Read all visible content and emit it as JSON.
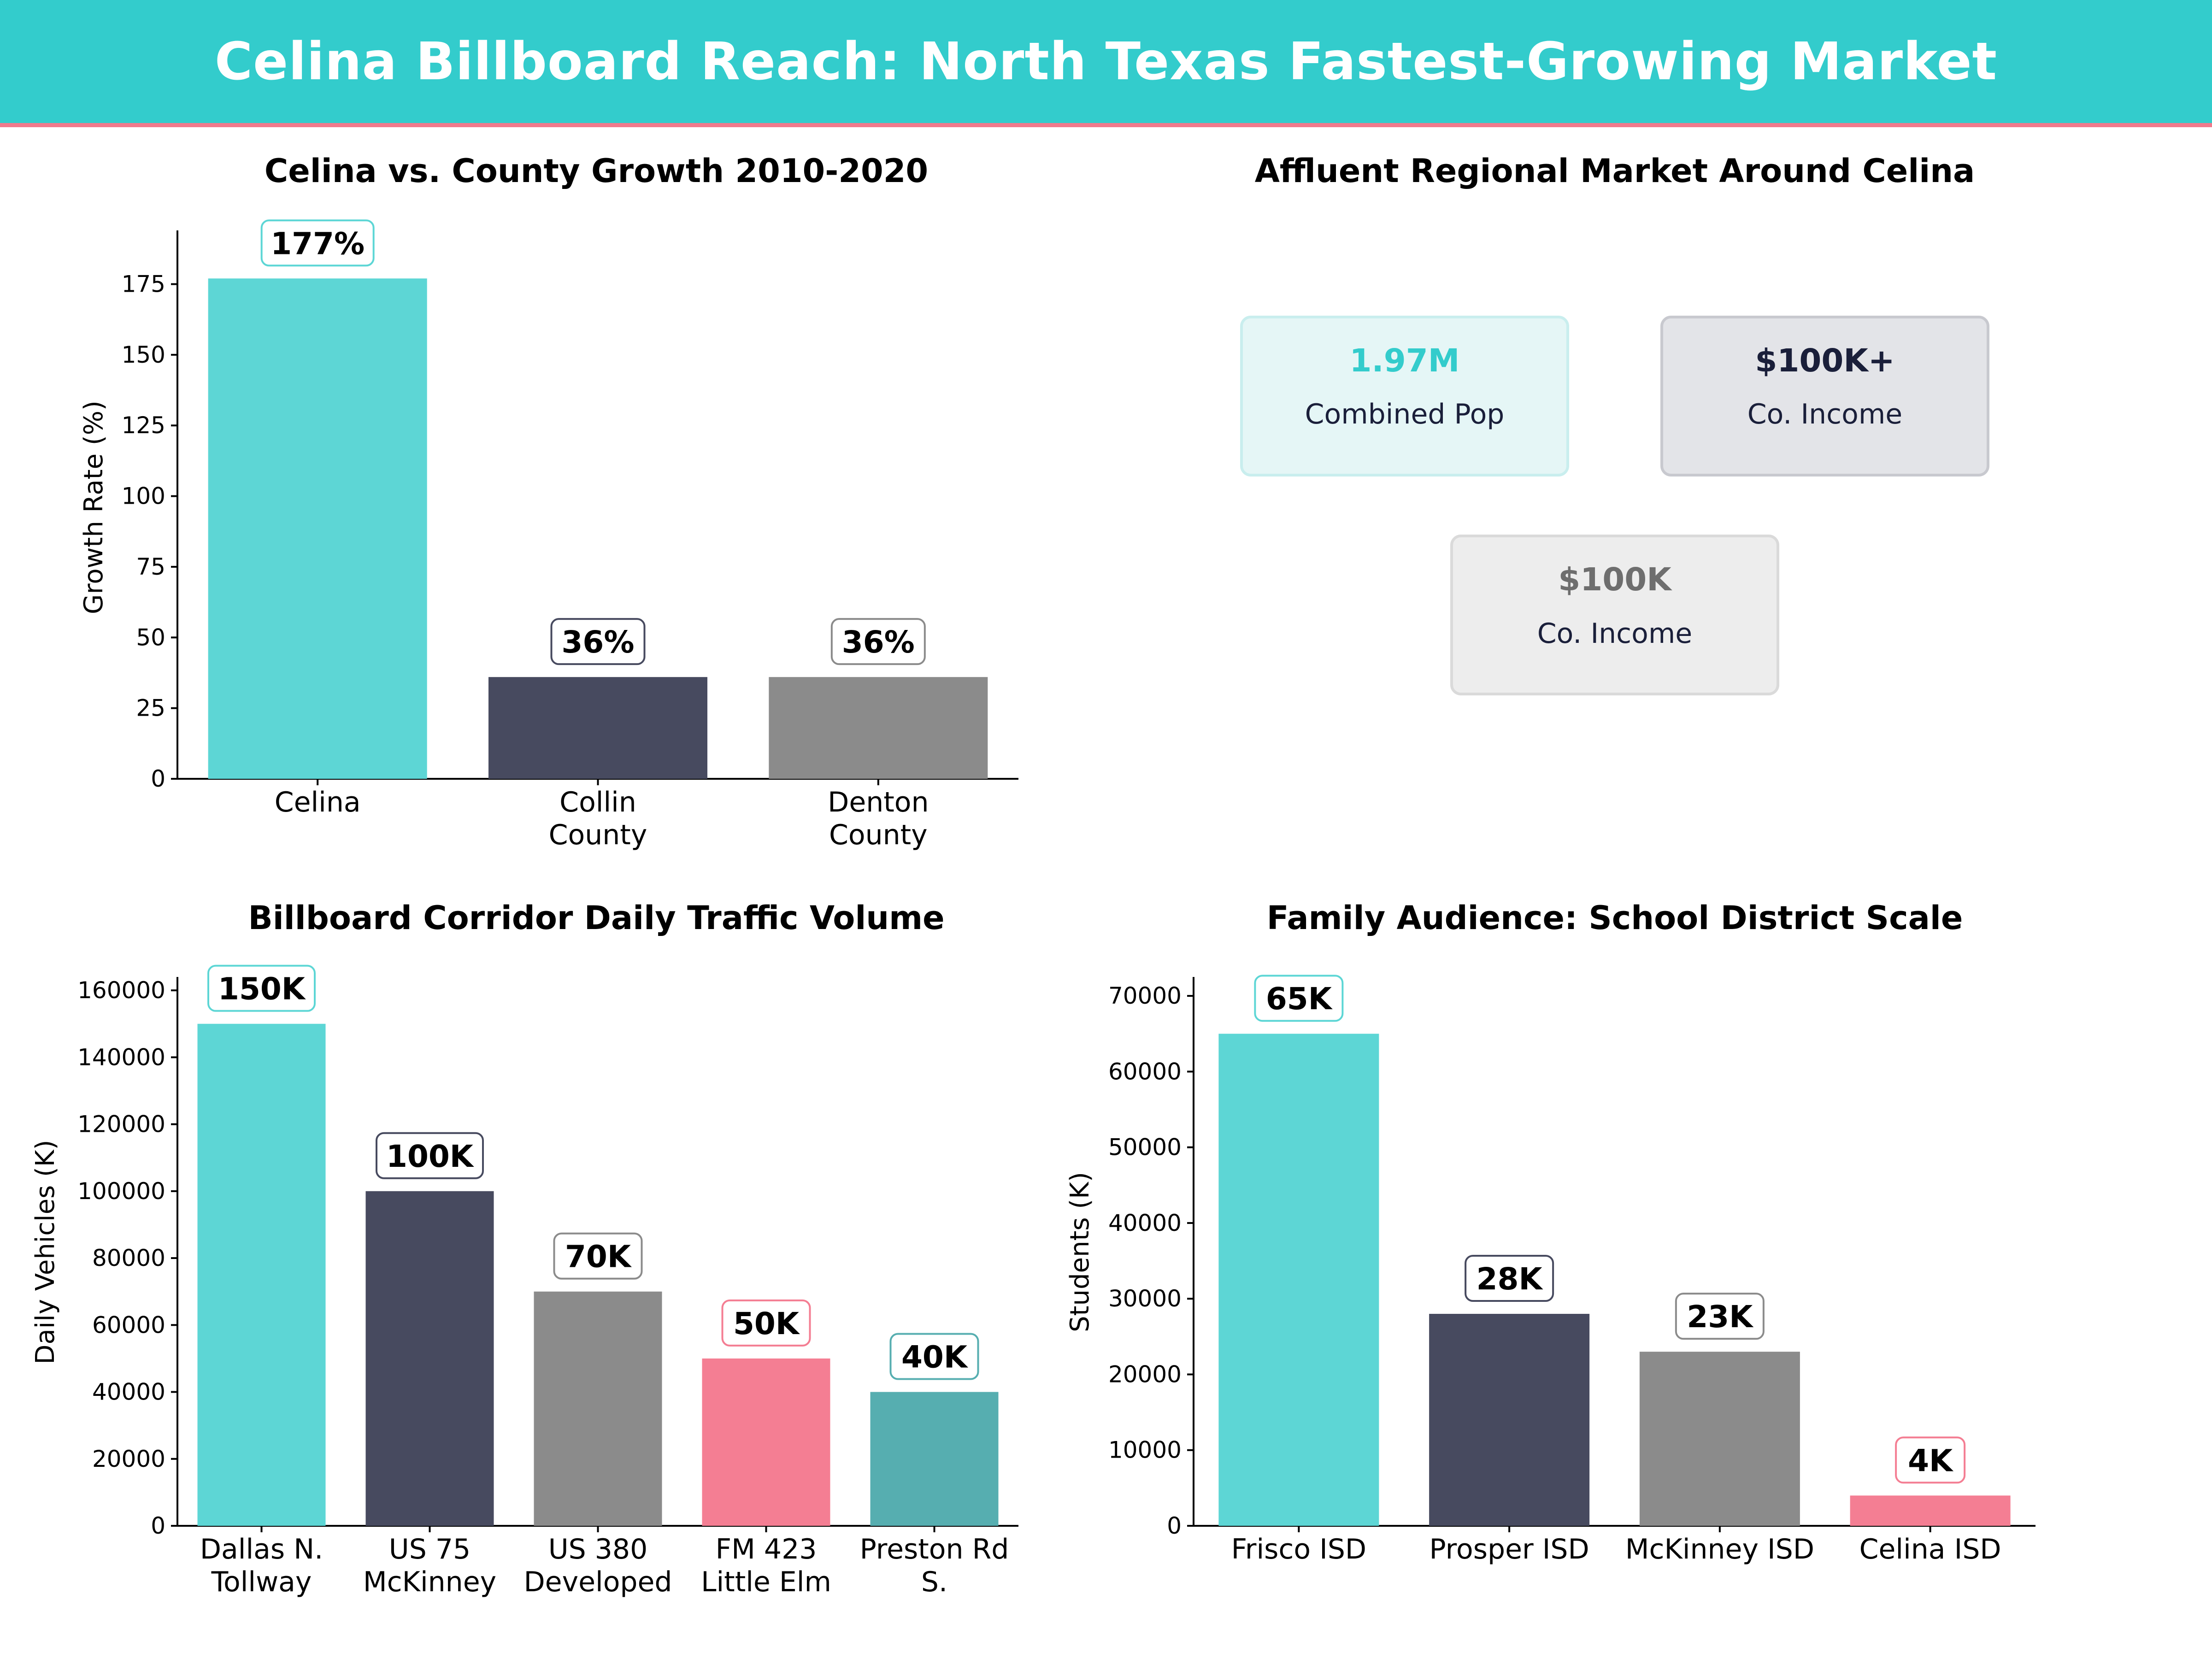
{
  "banner": {
    "title": "Celina Billboard Reach: North Texas Fastest-Growing Market"
  },
  "colors": {
    "teal": "#5dd6d5",
    "navy": "#474a5f",
    "gray": "#8b8b8b",
    "pink": "#f47e93",
    "darkteal": "#56aeb0",
    "banner": "#33cccc"
  },
  "chart_data": [
    {
      "type": "bar",
      "title": "Celina vs. County Growth 2010-2020",
      "ylabel": "Growth Rate (%)",
      "categories": [
        "Celina",
        "Collin\nCounty",
        "Denton\nCounty"
      ],
      "values": [
        177,
        36,
        36
      ],
      "data_labels": [
        "177%",
        "36%",
        "36%"
      ],
      "yticks": [
        0,
        25,
        50,
        75,
        100,
        125,
        150,
        175
      ],
      "ylim": [
        0,
        194
      ],
      "colors": [
        "#5dd6d5",
        "#474a5f",
        "#8b8b8b"
      ],
      "grid": false
    },
    {
      "type": "bar",
      "title": "Billboard Corridor Daily Traffic Volume",
      "ylabel": "Daily Vehicles (K)",
      "categories": [
        "Dallas N.\nTollway",
        "US 75\nMcKinney",
        "US 380\nDeveloped",
        "FM 423\nLittle Elm",
        "Preston Rd\nS."
      ],
      "values": [
        150000,
        100000,
        70000,
        50000,
        40000
      ],
      "data_labels": [
        "150K",
        "100K",
        "70K",
        "50K",
        "40K"
      ],
      "yticks": [
        0,
        20000,
        40000,
        60000,
        80000,
        100000,
        120000,
        140000,
        160000
      ],
      "ylim": [
        0,
        164000
      ],
      "colors": [
        "#5dd6d5",
        "#474a5f",
        "#8b8b8b",
        "#f47e93",
        "#56aeb0"
      ],
      "grid": false
    },
    {
      "type": "bar",
      "title": "Family Audience: School District Scale",
      "ylabel": "Students (K)",
      "categories": [
        "Frisco ISD",
        "Prosper ISD",
        "McKinney ISD",
        "Celina ISD"
      ],
      "values": [
        65000,
        28000,
        23000,
        4000
      ],
      "data_labels": [
        "65K",
        "28K",
        "23K",
        "4K"
      ],
      "yticks": [
        0,
        10000,
        20000,
        30000,
        40000,
        50000,
        60000,
        70000
      ],
      "ylim": [
        0,
        72500
      ],
      "colors": [
        "#5dd6d5",
        "#474a5f",
        "#8b8b8b",
        "#f47e93"
      ],
      "grid": false
    }
  ],
  "market": {
    "title": "Affluent Regional Market Around Celina",
    "cards": [
      {
        "value": "1.97M",
        "label": "Combined Pop",
        "value_color": "#33cccc",
        "fill": "#e5f6f6",
        "stroke": "#c9eeee"
      },
      {
        "value": "$100K+",
        "label": "Co. Income",
        "value_color": "#1a1f3a",
        "fill": "#e3e4e8",
        "stroke": "#c8c9cf"
      },
      {
        "value": "$100K",
        "label": "Co. Income",
        "value_color": "#6e6e6e",
        "fill": "#ededed",
        "stroke": "#dadada"
      }
    ]
  }
}
